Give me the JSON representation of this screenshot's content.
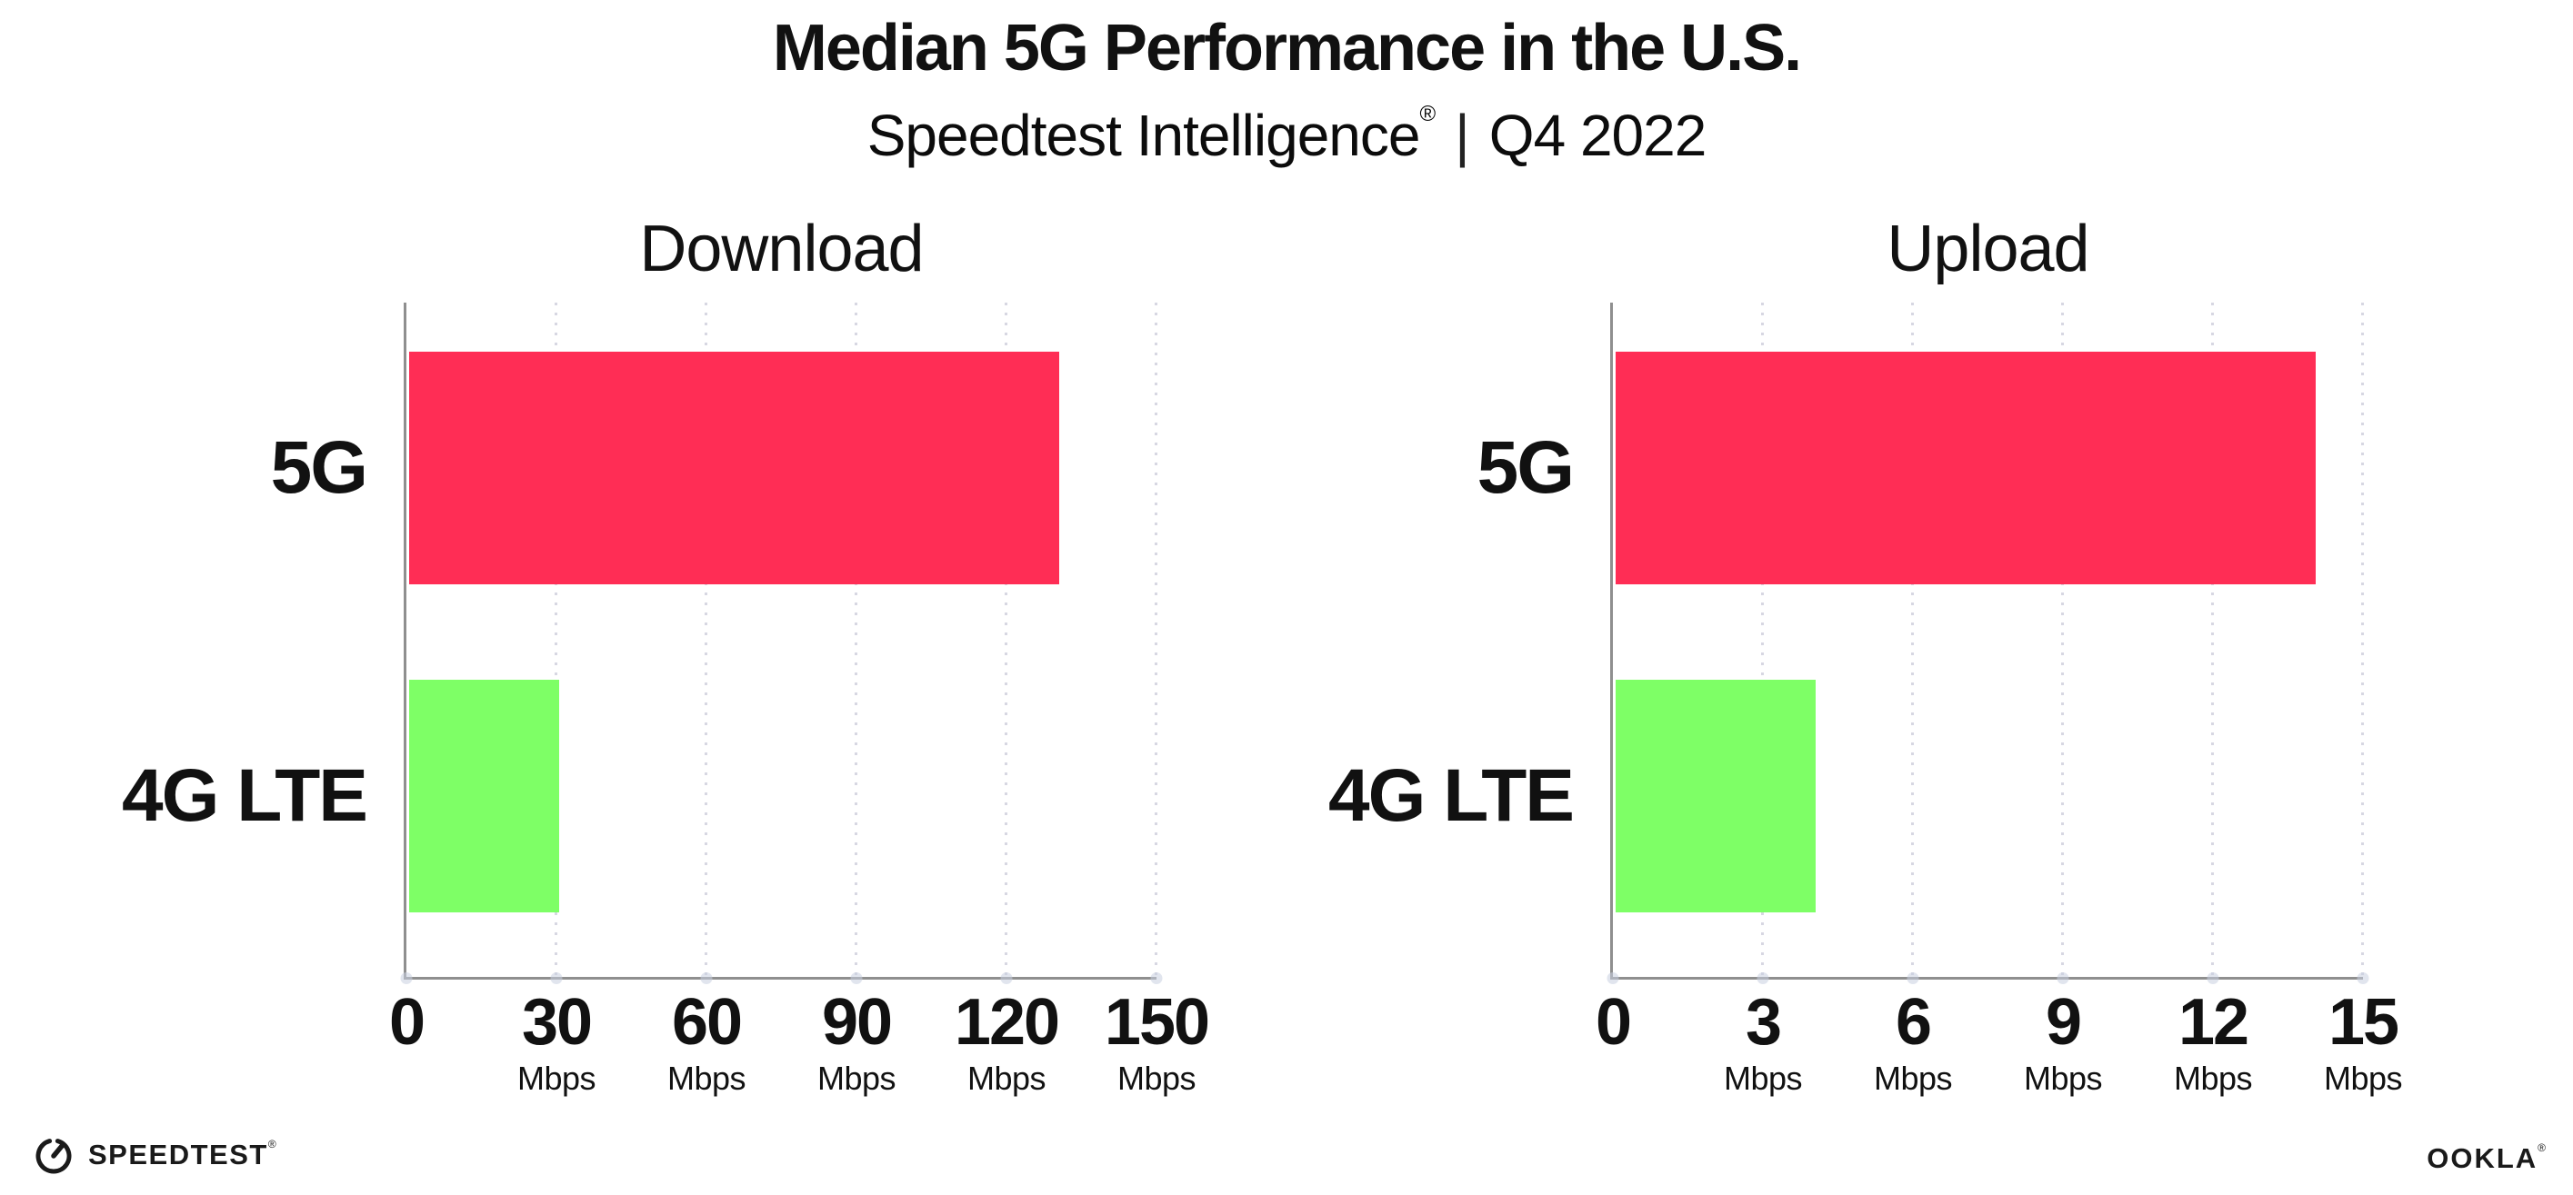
{
  "header": {
    "title": "Median 5G Performance in the U.S.",
    "subtitle_brand": "Speedtest Intelligence",
    "subtitle_reg": "®",
    "subtitle_separator": "|",
    "subtitle_period": "Q4 2022"
  },
  "chart_data": [
    {
      "type": "bar",
      "orientation": "horizontal",
      "title": "Download",
      "unit": "Mbps",
      "categories": [
        "5G",
        "4G LTE"
      ],
      "values": [
        130,
        30
      ],
      "xlim": [
        0,
        150
      ],
      "xticks": [
        0,
        30,
        60,
        90,
        120,
        150
      ],
      "bar_colors": [
        "#ff2d55",
        "#7eff66"
      ],
      "grid": "dotted-vertical",
      "legend": "none"
    },
    {
      "type": "bar",
      "orientation": "horizontal",
      "title": "Upload",
      "unit": "Mbps",
      "categories": [
        "5G",
        "4G LTE"
      ],
      "values": [
        14,
        4
      ],
      "xlim": [
        0,
        15
      ],
      "xticks": [
        0,
        3,
        6,
        9,
        12,
        15
      ],
      "bar_colors": [
        "#ff2d55",
        "#7eff66"
      ],
      "grid": "dotted-vertical",
      "legend": "none"
    }
  ],
  "footer": {
    "speedtest_logo_text": "SPEEDTEST",
    "speedtest_reg": "®",
    "ookla_logo_text": "OOKLA",
    "ookla_reg": "®"
  },
  "colors": {
    "bar_5g": "#ff2d55",
    "bar_4g_lte": "#7eff66",
    "axis_line": "#8f8f8f",
    "gridline": "#d7d7e2",
    "text": "#111111",
    "background": "#ffffff"
  }
}
